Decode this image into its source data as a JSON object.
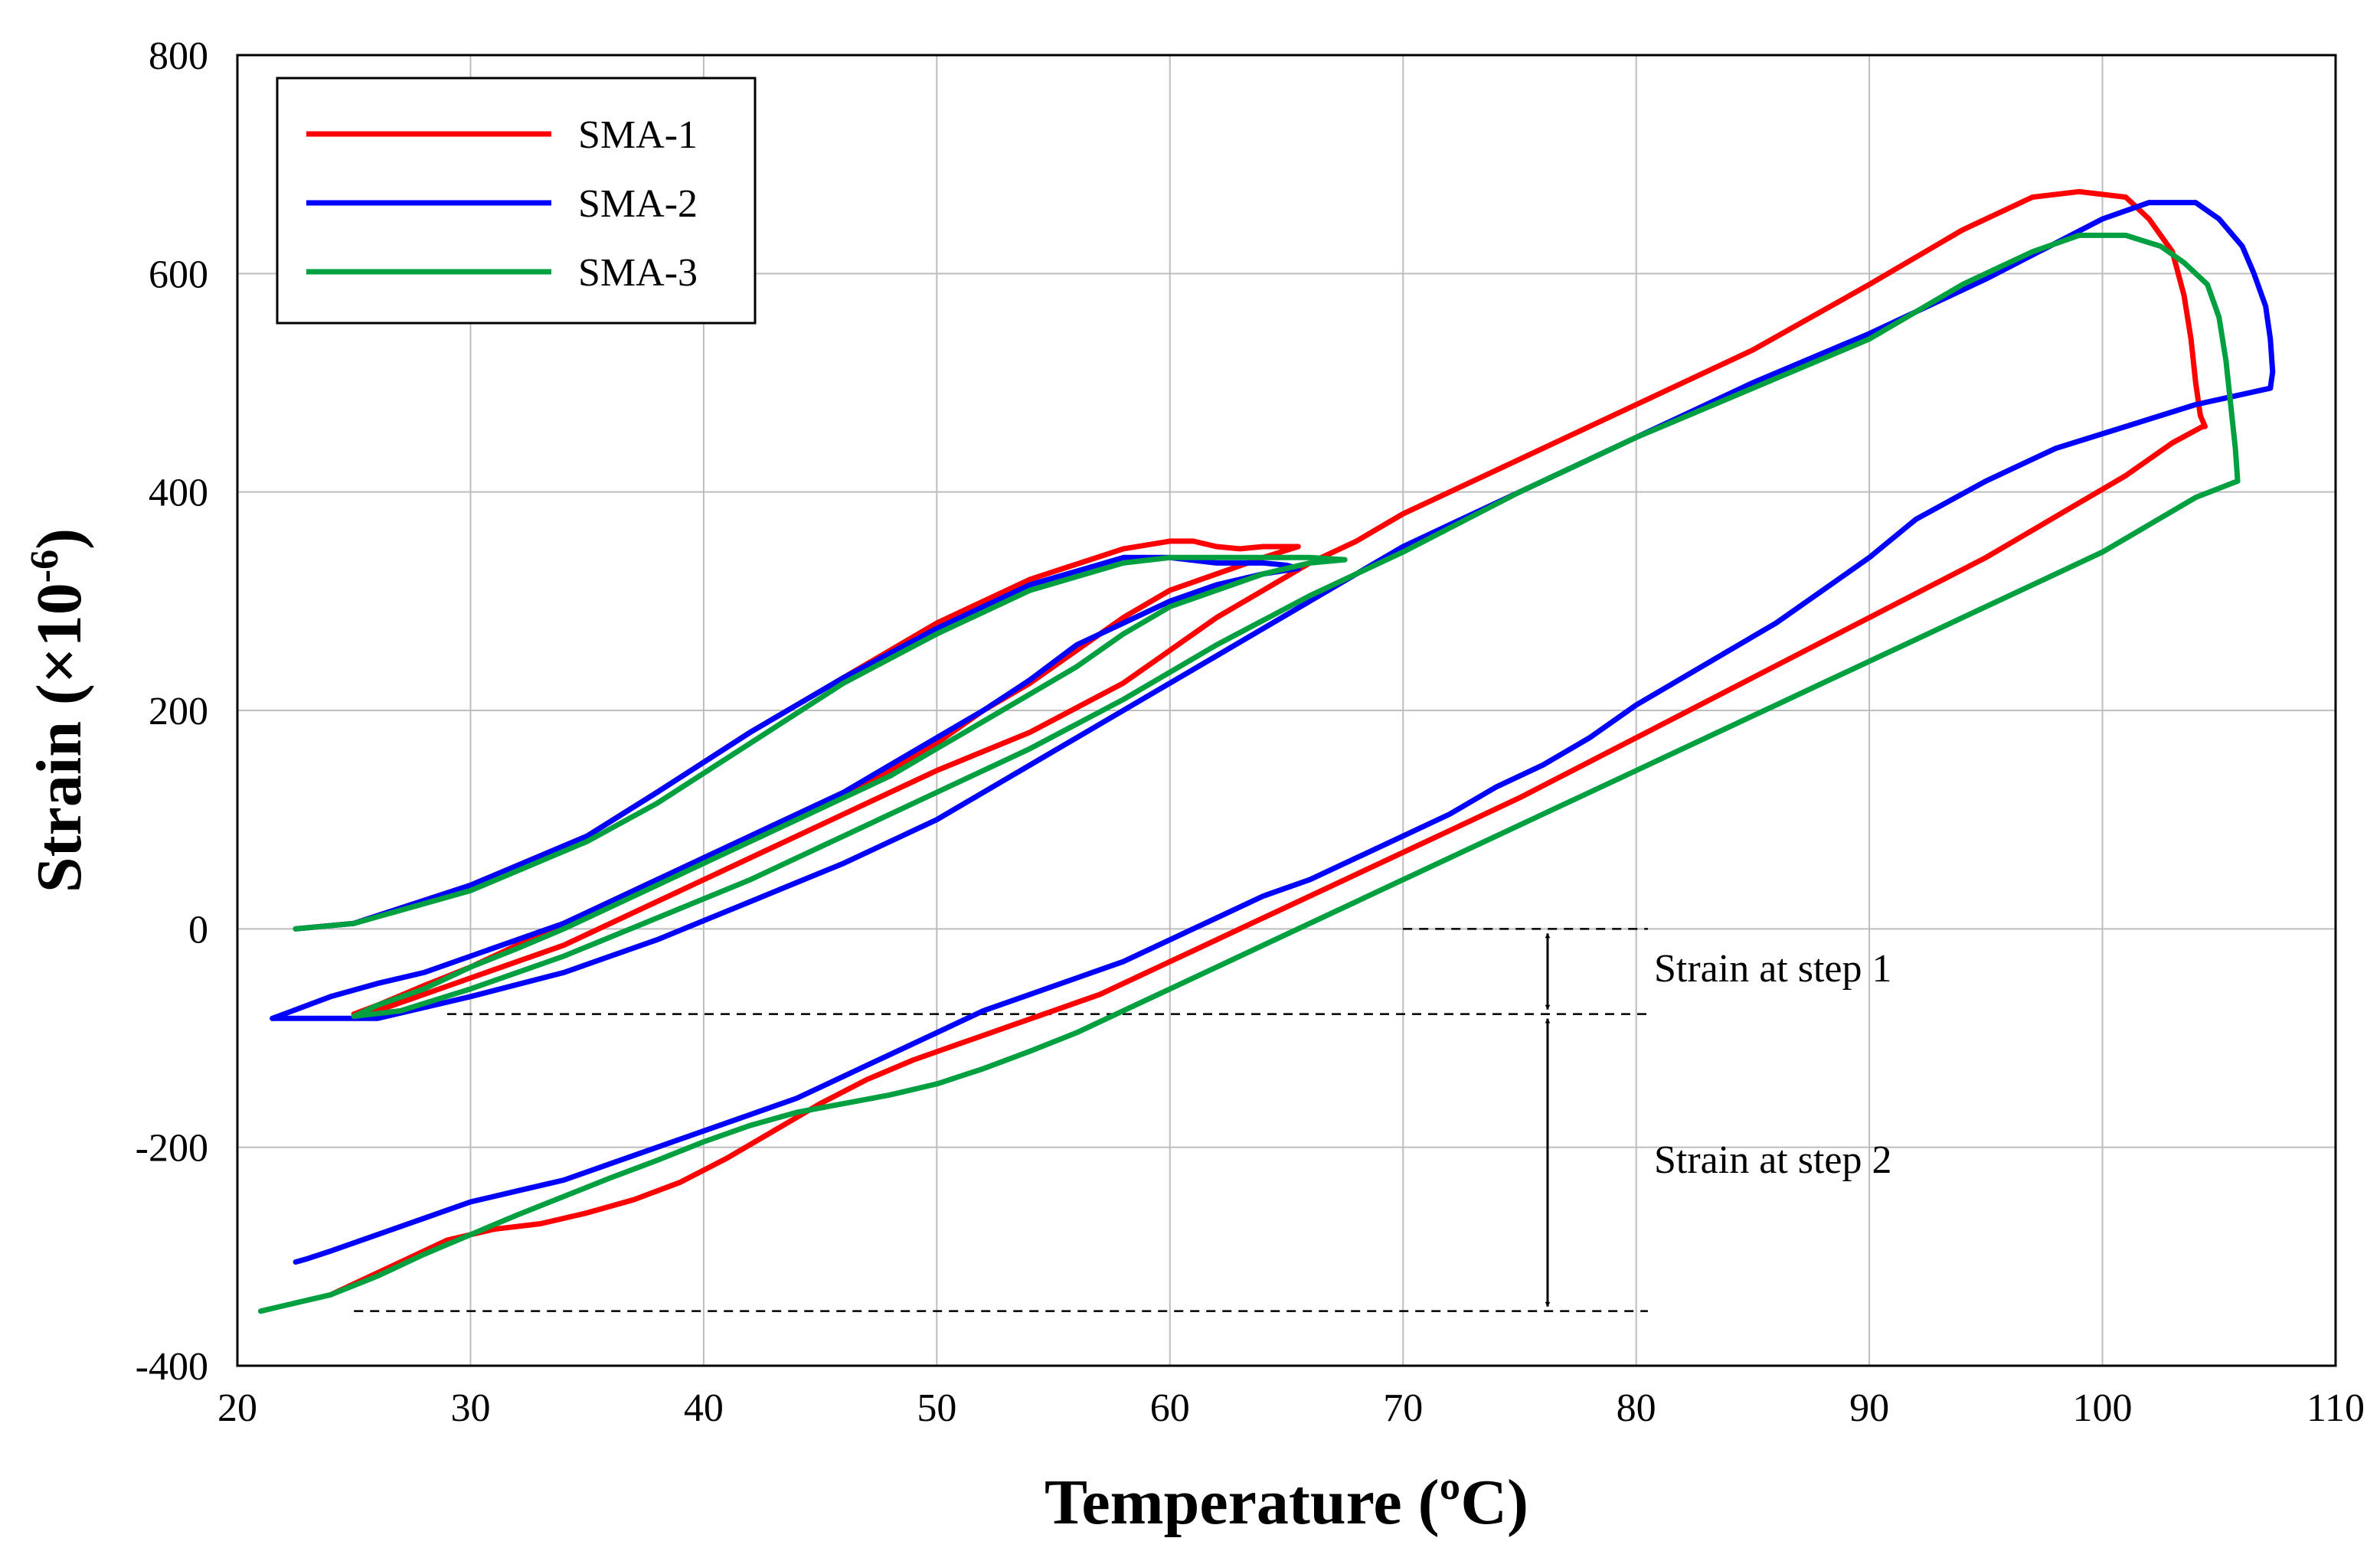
{
  "chart_data": {
    "type": "line",
    "title": "",
    "xlabel": "Temperature (ºC)",
    "ylabel": {
      "main": "Strain (×10",
      "sup": "-6",
      "close": ")"
    },
    "xlim": [
      20,
      110
    ],
    "ylim": [
      -400,
      800
    ],
    "xticks": [
      20,
      30,
      40,
      50,
      60,
      70,
      80,
      90,
      100,
      110
    ],
    "yticks": [
      -400,
      -200,
      0,
      200,
      400,
      600,
      800
    ],
    "xtick_labels": [
      "20",
      "30",
      "40",
      "50",
      "60",
      "70",
      "80",
      "90",
      "100",
      "110"
    ],
    "ytick_labels": [
      "-400",
      "-200",
      "0",
      "200",
      "400",
      "600",
      "800"
    ],
    "grid": true,
    "legend_position": "top-left",
    "colors": {
      "SMA-1": "#ff0000",
      "SMA-2": "#0000ff",
      "SMA-3": "#00a040"
    },
    "series": [
      {
        "name": "SMA-1",
        "color": "#ff0000",
        "segments": [
          {
            "x": [
              22.5,
              25,
              30,
              35,
              38,
              42,
              46,
              50,
              54,
              58,
              60,
              61,
              62,
              63,
              64,
              65,
              65.5
            ],
            "y": [
              0,
              5,
              40,
              85,
              125,
              180,
              230,
              280,
              320,
              348,
              355,
              355,
              350,
              348,
              350,
              350,
              350
            ]
          },
          {
            "x": [
              65.5,
              64,
              62,
              60,
              58,
              56,
              54,
              52,
              50,
              48,
              46,
              44,
              42,
              40,
              38,
              36,
              34,
              32,
              30,
              28,
              26,
              25
            ],
            "y": [
              350,
              340,
              325,
              310,
              285,
              255,
              225,
              200,
              170,
              145,
              125,
              105,
              85,
              65,
              45,
              25,
              5,
              -15,
              -35,
              -52,
              -70,
              -78
            ]
          },
          {
            "x": [
              25,
              26,
              28,
              30,
              34,
              38,
              42,
              46,
              50,
              54,
              58,
              60,
              62,
              64,
              66,
              68,
              70,
              75,
              80,
              85,
              90,
              94,
              97,
              99,
              101,
              102,
              103,
              103.5,
              103.8,
              104,
              104.2,
              104.4,
              104.3
            ],
            "y": [
              -78,
              -75,
              -60,
              -45,
              -15,
              25,
              65,
              105,
              145,
              180,
              225,
              255,
              285,
              310,
              335,
              355,
              380,
              430,
              480,
              530,
              590,
              640,
              670,
              675,
              670,
              650,
              620,
              580,
              540,
              500,
              470,
              460,
              460
            ]
          },
          {
            "x": [
              104.3,
              103,
              101,
              99,
              97,
              95,
              93,
              91,
              89,
              87,
              85,
              83,
              81,
              79,
              77,
              75,
              73,
              71,
              69,
              67,
              65,
              63,
              61,
              59,
              57,
              55,
              53,
              51,
              49,
              47,
              45,
              43,
              41,
              39,
              37,
              35,
              33,
              31,
              29,
              27,
              25,
              24
            ],
            "y": [
              460,
              445,
              415,
              390,
              365,
              340,
              318,
              296,
              274,
              252,
              230,
              208,
              186,
              164,
              142,
              120,
              100,
              80,
              60,
              40,
              20,
              0,
              -20,
              -40,
              -60,
              -75,
              -90,
              -105,
              -120,
              -138,
              -160,
              -185,
              -210,
              -232,
              -248,
              -260,
              -270,
              -275,
              -285,
              -305,
              -325,
              -335
            ]
          }
        ]
      },
      {
        "name": "SMA-2",
        "color": "#0000ff",
        "segments": [
          {
            "x": [
              22.5,
              25,
              30,
              35,
              38,
              42,
              46,
              50,
              54,
              58,
              60,
              62,
              64,
              65,
              65.5
            ],
            "y": [
              0,
              5,
              40,
              85,
              125,
              180,
              230,
              275,
              315,
              340,
              340,
              335,
              335,
              333,
              330
            ]
          },
          {
            "x": [
              65.5,
              64,
              62,
              60,
              58,
              56,
              54,
              52,
              50,
              48,
              46,
              44,
              42,
              40,
              38,
              36,
              34,
              32,
              30,
              28,
              26,
              24,
              22,
              21.5
            ],
            "y": [
              330,
              325,
              315,
              300,
              280,
              260,
              228,
              200,
              175,
              150,
              125,
              105,
              85,
              65,
              45,
              25,
              5,
              -10,
              -25,
              -40,
              -50,
              -62,
              -78,
              -82
            ]
          },
          {
            "x": [
              21.5,
              24,
              26,
              28,
              30,
              34,
              38,
              42,
              46,
              50,
              54,
              58,
              62,
              66,
              70,
              75,
              80,
              85,
              90,
              95,
              100,
              102,
              104,
              105,
              106,
              106.5,
              107,
              107.2,
              107.3,
              107.2
            ],
            "y": [
              -82,
              -82,
              -82,
              -72,
              -62,
              -40,
              -10,
              25,
              60,
              100,
              150,
              200,
              250,
              300,
              350,
              400,
              450,
              500,
              545,
              595,
              650,
              665,
              665,
              650,
              625,
              600,
              570,
              540,
              510,
              495
            ]
          },
          {
            "x": [
              107.2,
              104,
              101,
              98,
              95,
              92,
              90,
              88,
              86,
              84,
              82,
              80,
              78,
              76,
              74,
              72,
              70,
              68,
              66,
              64,
              62,
              60,
              58,
              56,
              54,
              52,
              50,
              48,
              46,
              44,
              42,
              40,
              38,
              36,
              34,
              32,
              30,
              28,
              26,
              24,
              23,
              22.5
            ],
            "y": [
              495,
              480,
              460,
              440,
              410,
              375,
              340,
              310,
              280,
              255,
              230,
              205,
              175,
              150,
              130,
              105,
              85,
              65,
              45,
              30,
              10,
              -10,
              -30,
              -45,
              -60,
              -75,
              -95,
              -115,
              -135,
              -155,
              -170,
              -185,
              -200,
              -215,
              -230,
              -240,
              -250,
              -265,
              -280,
              -295,
              -302,
              -305
            ]
          }
        ]
      },
      {
        "name": "SMA-3",
        "color": "#00a040",
        "segments": [
          {
            "x": [
              22.5,
              25,
              30,
              35,
              38,
              42,
              46,
              50,
              54,
              58,
              60,
              62,
              64,
              66,
              67.5
            ],
            "y": [
              0,
              5,
              35,
              80,
              115,
              170,
              225,
              270,
              310,
              335,
              340,
              340,
              340,
              340,
              338
            ]
          },
          {
            "x": [
              67.5,
              66,
              64,
              62,
              60,
              58,
              56,
              54,
              52,
              50,
              48,
              46,
              44,
              42,
              40,
              38,
              36,
              34,
              32,
              30,
              28,
              26,
              25
            ],
            "y": [
              338,
              335,
              325,
              310,
              295,
              270,
              240,
              215,
              190,
              165,
              140,
              120,
              100,
              80,
              60,
              40,
              20,
              0,
              -18,
              -35,
              -55,
              -70,
              -80
            ]
          },
          {
            "x": [
              25,
              27,
              30,
              34,
              38,
              42,
              46,
              50,
              54,
              58,
              62,
              66,
              70,
              75,
              80,
              85,
              90,
              94,
              97,
              99,
              101,
              102.5,
              103.5,
              104.5,
              105,
              105.3,
              105.5,
              105.7,
              105.8
            ],
            "y": [
              -80,
              -75,
              -55,
              -25,
              10,
              45,
              85,
              125,
              165,
              210,
              260,
              305,
              345,
              400,
              450,
              495,
              540,
              590,
              620,
              635,
              635,
              625,
              610,
              590,
              560,
              520,
              480,
              440,
              410
            ]
          },
          {
            "x": [
              105.8,
              104,
              102,
              100,
              98,
              96,
              94,
              92,
              90,
              88,
              86,
              84,
              82,
              80,
              78,
              76,
              74,
              72,
              70,
              68,
              66,
              64,
              62,
              60,
              58,
              56,
              54,
              52,
              50,
              48,
              46,
              44,
              42,
              40,
              38,
              36,
              34,
              32,
              30,
              28,
              26,
              24,
              22,
              21
            ],
            "y": [
              410,
              395,
              370,
              345,
              325,
              305,
              285,
              265,
              245,
              225,
              205,
              185,
              165,
              145,
              125,
              105,
              85,
              65,
              45,
              25,
              5,
              -15,
              -35,
              -55,
              -75,
              -95,
              -112,
              -128,
              -142,
              -152,
              -160,
              -168,
              -180,
              -195,
              -212,
              -228,
              -245,
              -262,
              -280,
              -298,
              -318,
              -335,
              -345,
              -350
            ]
          }
        ]
      }
    ],
    "annotations": {
      "step1_label": "Strain at step 1",
      "step2_label": "Strain at step 2",
      "reference_lines": [
        {
          "y": 0,
          "x_from": 70,
          "x_to": 80.5
        },
        {
          "y": -78,
          "x_from": 29,
          "x_to": 80.5
        },
        {
          "y": -350,
          "x_from": 25,
          "x_to": 80.5
        }
      ],
      "arrow_x": 76.2,
      "step1_range": [
        0,
        -78
      ],
      "step2_range": [
        -78,
        -350
      ]
    }
  }
}
